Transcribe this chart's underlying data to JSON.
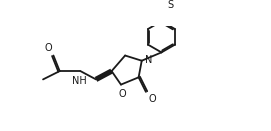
{
  "bg_color": "#ffffff",
  "line_color": "#1a1a1a",
  "lw": 1.3,
  "fs": 7.0,
  "xlim": [
    0,
    10
  ],
  "ylim": [
    0,
    5
  ],
  "figsize": [
    2.71,
    1.31
  ],
  "dpi": 100
}
